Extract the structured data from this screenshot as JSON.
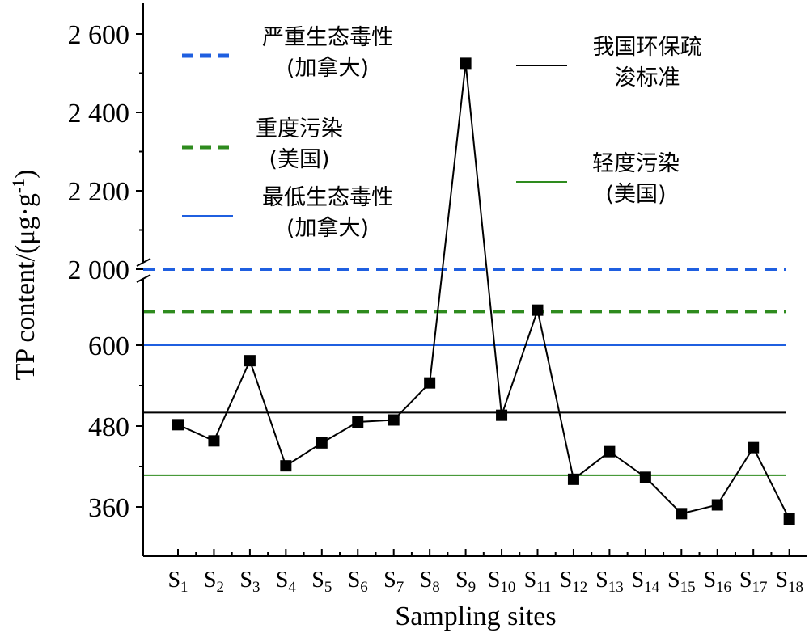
{
  "chart_data": {
    "type": "line",
    "xlabel": "Sampling sites",
    "ylabel_main": "TP content/(μg·g",
    "ylabel_sup": "-1",
    "ylabel_close": ")",
    "axis_break": true,
    "y_ticks_lower": [
      360,
      480,
      600
    ],
    "y_ticks_upper": [
      2000,
      2200,
      2400,
      2600
    ],
    "y_tick_labels_lower": [
      "360",
      "480",
      "600"
    ],
    "y_tick_labels_upper": [
      "2 000",
      "2 200",
      "2 400",
      "2 600"
    ],
    "categories": [
      {
        "base": "S",
        "sub": "1"
      },
      {
        "base": "S",
        "sub": "2"
      },
      {
        "base": "S",
        "sub": "3"
      },
      {
        "base": "S",
        "sub": "4"
      },
      {
        "base": "S",
        "sub": "5"
      },
      {
        "base": "S",
        "sub": "6"
      },
      {
        "base": "S",
        "sub": "7"
      },
      {
        "base": "S",
        "sub": "8"
      },
      {
        "base": "S",
        "sub": "9"
      },
      {
        "base": "S",
        "sub": "10"
      },
      {
        "base": "S",
        "sub": "11"
      },
      {
        "base": "S",
        "sub": "12"
      },
      {
        "base": "S",
        "sub": "13"
      },
      {
        "base": "S",
        "sub": "14"
      },
      {
        "base": "S",
        "sub": "15"
      },
      {
        "base": "S",
        "sub": "16"
      },
      {
        "base": "S",
        "sub": "17"
      },
      {
        "base": "S",
        "sub": "18"
      }
    ],
    "series": [
      {
        "values": [
          482,
          458,
          577,
          421,
          455,
          486,
          489,
          544,
          2525,
          496,
          652,
          401,
          442,
          404,
          350,
          363,
          448,
          342
        ],
        "color": "#000000",
        "marker": "square"
      }
    ],
    "reference_lines": [
      {
        "label_lines": [
          "严重生态毒性",
          "(加拿大)"
        ],
        "value": 2000,
        "color": "#1f5fe0",
        "style": "dashed",
        "width": 4
      },
      {
        "label_lines": [
          "重度污染",
          "(美国)"
        ],
        "value": 650,
        "color": "#2e8b1e",
        "style": "dashed",
        "width": 4
      },
      {
        "label_lines": [
          "最低生态毒性",
          "(加拿大)"
        ],
        "value": 600,
        "color": "#1f5fe0",
        "style": "solid",
        "width": 2
      },
      {
        "label_lines": [
          "我国环保疏",
          "浚标准"
        ],
        "value": 500,
        "color": "#000000",
        "style": "solid",
        "width": 2
      },
      {
        "label_lines": [
          "轻度污染",
          "(美国)"
        ],
        "value": 407,
        "color": "#2e8b1e",
        "style": "solid",
        "width": 2
      }
    ],
    "legend_placement": "top, two columns",
    "grid": false
  }
}
